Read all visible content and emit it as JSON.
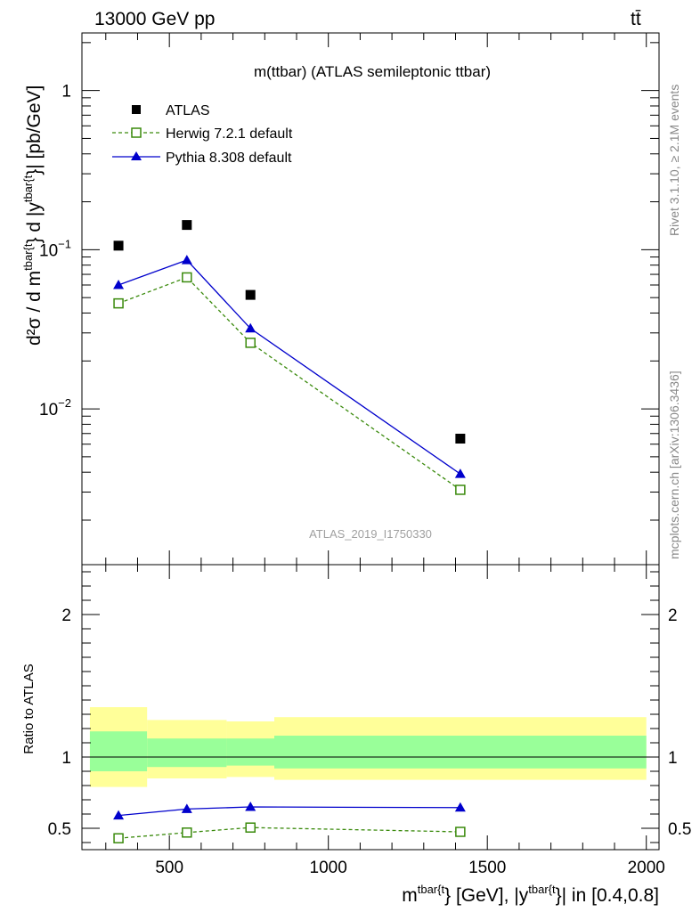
{
  "header": {
    "energy_label": "13000 GeV pp",
    "process_label": "tt̄"
  },
  "side_labels": {
    "rivet": "Rivet 3.1.10, ≥ 2.1M events",
    "mcplots": "mcplots.cern.ch [arXiv:1306.3436]"
  },
  "colors": {
    "atlas": "#000000",
    "herwig": "#3a8a0c",
    "pythia": "#0000cc",
    "band_outer": "#ffff99",
    "band_inner": "#99ff99"
  },
  "chart_data": [
    {
      "type": "scatter",
      "title": "m(ttbar) (ATLAS semileptonic ttbar)",
      "watermark": "ATLAS_2019_I1750330",
      "ylabel": {
        "main": "d²σ / d m",
        "sup1": "tbar{t",
        "mid": "} d |y",
        "sup2": "tbar{t",
        "end": "}| [pb/GeV]"
      },
      "yscale": "log",
      "ylim": [
        0.00105,
        2.3
      ],
      "xlim": [
        225,
        2040
      ],
      "ytick_labels": [
        {
          "value": 1,
          "label": "1"
        },
        {
          "value": 0.1,
          "label": "10",
          "sup": "−1"
        },
        {
          "value": 0.01,
          "label": "10",
          "sup": "−2"
        }
      ],
      "legend_position": "top-left",
      "series": [
        {
          "name": "ATLAS",
          "marker": "filled-square",
          "x": [
            340,
            555,
            755,
            1415
          ],
          "y": [
            0.106,
            0.143,
            0.052,
            0.0065
          ]
        },
        {
          "name": "Herwig 7.2.1 default",
          "marker": "open-square",
          "line": "dashed",
          "x": [
            340,
            555,
            755,
            1415
          ],
          "y": [
            0.046,
            0.067,
            0.026,
            0.0031
          ]
        },
        {
          "name": "Pythia 8.308 default",
          "marker": "filled-triangle",
          "line": "solid",
          "x": [
            340,
            555,
            755,
            1415
          ],
          "y": [
            0.06,
            0.086,
            0.032,
            0.0039
          ]
        }
      ]
    },
    {
      "type": "scatter",
      "ylabel": "Ratio to ATLAS",
      "xlabel": {
        "main": "m",
        "sup1": "tbar{t",
        "mid": "} [GeV], |y",
        "sup2": "tbar{t",
        "end": "}| in [0.4,0.8]"
      },
      "ylim": [
        0.35,
        2.35
      ],
      "xlim": [
        225,
        2040
      ],
      "x_ticks": [
        500,
        1000,
        1500,
        2000
      ],
      "x_tick_labels": [
        "500",
        "1000",
        "1500",
        "2000"
      ],
      "y_ticks": [
        0.5,
        1,
        2
      ],
      "y_tick_labels": [
        "0.5",
        "1",
        "2"
      ],
      "uncertainty_bands": [
        {
          "x0": 250,
          "x1": 430,
          "outer": [
            0.79,
            1.35
          ],
          "inner": [
            0.9,
            1.18
          ]
        },
        {
          "x0": 430,
          "x1": 680,
          "outer": [
            0.85,
            1.26
          ],
          "inner": [
            0.93,
            1.13
          ]
        },
        {
          "x0": 680,
          "x1": 830,
          "outer": [
            0.86,
            1.25
          ],
          "inner": [
            0.94,
            1.13
          ]
        },
        {
          "x0": 830,
          "x1": 2000,
          "outer": [
            0.84,
            1.28
          ],
          "inner": [
            0.92,
            1.15
          ]
        }
      ],
      "series": [
        {
          "name": "Herwig 7.2.1 default",
          "marker": "open-square",
          "line": "dashed",
          "x": [
            340,
            555,
            755,
            1415
          ],
          "y": [
            0.43,
            0.47,
            0.505,
            0.475
          ]
        },
        {
          "name": "Pythia 8.308 default",
          "marker": "filled-triangle",
          "line": "solid",
          "x": [
            340,
            555,
            755,
            1415
          ],
          "y": [
            0.59,
            0.635,
            0.65,
            0.645
          ]
        }
      ]
    }
  ]
}
